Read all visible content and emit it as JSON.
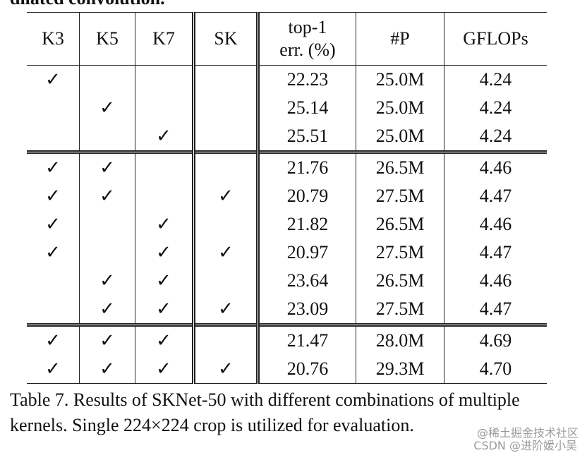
{
  "top_text": "dilated convolution.",
  "table": {
    "header": [
      "K3",
      "K5",
      "K7",
      "SK",
      "top-1\nerr. (%)",
      "#P",
      "GFLOPs"
    ],
    "groups": [
      [
        [
          "✓",
          null,
          null,
          null,
          "22.23",
          "25.0M",
          "4.24"
        ],
        [
          null,
          "✓",
          null,
          null,
          "25.14",
          "25.0M",
          "4.24"
        ],
        [
          null,
          null,
          "✓",
          null,
          "25.51",
          "25.0M",
          "4.24"
        ]
      ],
      [
        [
          "✓",
          "✓",
          null,
          null,
          "21.76",
          "26.5M",
          "4.46"
        ],
        [
          "✓",
          "✓",
          null,
          "✓",
          "20.79",
          "27.5M",
          "4.47"
        ],
        [
          "✓",
          null,
          "✓",
          null,
          "21.82",
          "26.5M",
          "4.46"
        ],
        [
          "✓",
          null,
          "✓",
          "✓",
          "20.97",
          "27.5M",
          "4.47"
        ],
        [
          null,
          "✓",
          "✓",
          null,
          "23.64",
          "26.5M",
          "4.46"
        ],
        [
          null,
          "✓",
          "✓",
          "✓",
          "23.09",
          "27.5M",
          "4.47"
        ]
      ],
      [
        [
          "✓",
          "✓",
          "✓",
          null,
          "21.47",
          "28.0M",
          "4.69"
        ],
        [
          "✓",
          "✓",
          "✓",
          "✓",
          "20.76",
          "29.3M",
          "4.70"
        ]
      ]
    ]
  },
  "caption": "Table 7. Results of SKNet-50 with different combinations of multiple kernels. Single 224×224 crop is utilized for evaluation.",
  "watermarks": [
    "@稀土掘金技术社区",
    "CSDN @进阶媛小吴"
  ]
}
